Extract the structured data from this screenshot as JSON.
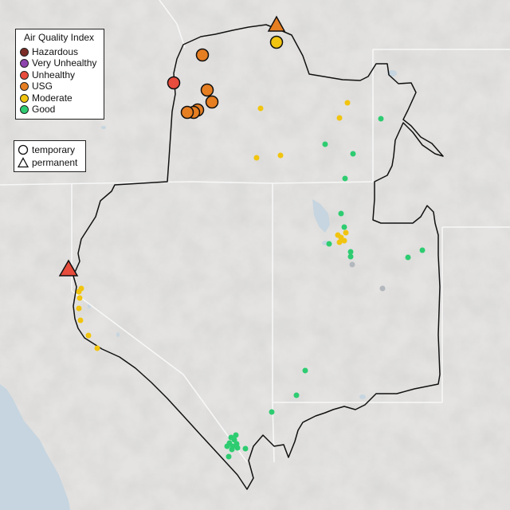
{
  "legend": {
    "title": "Air Quality Index",
    "categories": [
      {
        "label": "Hazardous",
        "color": "#7b2d26"
      },
      {
        "label": "Very Unhealthy",
        "color": "#8e44ad"
      },
      {
        "label": "Unhealthy",
        "color": "#e74c3c"
      },
      {
        "label": "USG",
        "color": "#e67e22"
      },
      {
        "label": "Moderate",
        "color": "#f1c40f"
      },
      {
        "label": "Good",
        "color": "#2ecc71"
      }
    ],
    "types": [
      {
        "label": "temporary",
        "shape": "circle"
      },
      {
        "label": "permanent",
        "shape": "triangle"
      }
    ]
  },
  "colors": {
    "land": "#e4e3e1",
    "ocean": "#c6d5e0",
    "border": "#111111",
    "state_lines": "#f7f7f7",
    "no_data": "#b3b8be"
  }
}
